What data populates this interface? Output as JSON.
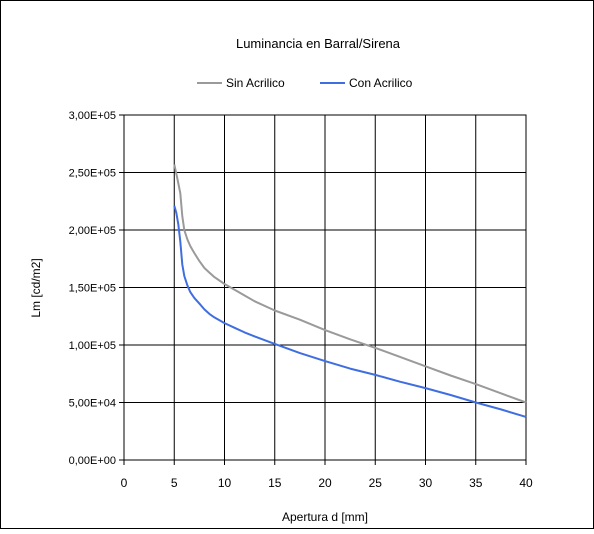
{
  "chart_data": {
    "type": "line",
    "title": "Luminancia en Barral/Sirena",
    "xlabel": "Apertura d [mm]",
    "ylabel": "Lm [cd/m2]",
    "xlim": [
      0,
      40
    ],
    "ylim": [
      0,
      300000
    ],
    "x_ticks": [
      0,
      5,
      10,
      15,
      20,
      25,
      30,
      35,
      40
    ],
    "x_tick_labels": [
      "0",
      "5",
      "10",
      "15",
      "20",
      "25",
      "30",
      "35",
      "40"
    ],
    "y_ticks": [
      0,
      50000,
      100000,
      150000,
      200000,
      250000,
      300000
    ],
    "y_tick_labels": [
      "0,00E+00",
      "5,00E+04",
      "1,00E+05",
      "1,50E+05",
      "2,00E+05",
      "2,50E+05",
      "3,00E+05"
    ],
    "grid": true,
    "legend_position": "top",
    "series": [
      {
        "name": "Sin Acrilico",
        "color": "#9a9a9a",
        "x": [
          5,
          5.3,
          5.6,
          5.8,
          6,
          6.3,
          6.6,
          7,
          7.5,
          8,
          8.5,
          9,
          10,
          11,
          12,
          13,
          15,
          17.5,
          20,
          22.5,
          25,
          27.5,
          30,
          32.5,
          35,
          37.5,
          40
        ],
        "y": [
          257000,
          245000,
          232000,
          212000,
          200000,
          192000,
          186000,
          180000,
          173000,
          167000,
          163000,
          159000,
          153000,
          148000,
          143000,
          138000,
          130000,
          122000,
          113000,
          105000,
          97500,
          89500,
          81500,
          73500,
          66000,
          58000,
          50000
        ]
      },
      {
        "name": "Con Acrilico",
        "color": "#3f6ee0",
        "x": [
          5,
          5.2,
          5.4,
          5.6,
          5.8,
          6,
          6.3,
          6.6,
          7,
          7.5,
          8,
          8.5,
          9,
          10,
          11,
          12,
          13,
          15,
          17.5,
          20,
          22.5,
          25,
          27.5,
          30,
          32.5,
          35,
          37.5,
          40
        ],
        "y": [
          221000,
          215000,
          205000,
          190000,
          170000,
          160000,
          152000,
          146000,
          141000,
          136000,
          131000,
          127000,
          124000,
          119000,
          115000,
          111000,
          107500,
          101000,
          93000,
          86000,
          79500,
          74000,
          68000,
          62500,
          56500,
          50000,
          44000,
          37500
        ]
      }
    ]
  }
}
